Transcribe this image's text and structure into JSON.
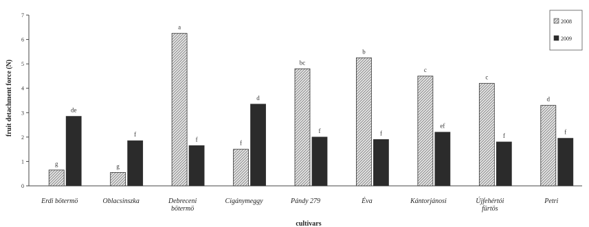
{
  "chart_data": {
    "type": "bar",
    "title": "",
    "xlabel": "cultivars",
    "ylabel": "fruit detachment force (N)",
    "ylim": [
      0,
      7
    ],
    "yticks": [
      0,
      1,
      2,
      3,
      4,
      5,
      6,
      7
    ],
    "grid": false,
    "legend_position": "top-right",
    "categories": [
      [
        "Erdi bötermö"
      ],
      [
        "Oblacsinszka"
      ],
      [
        "Debreceni",
        "bötermö"
      ],
      [
        "Cigánymeggy"
      ],
      [
        "Pándy 279"
      ],
      [
        "Éva"
      ],
      [
        "Kántorjánosi"
      ],
      [
        "Újfehértói",
        "fürtös"
      ],
      [
        "Petri"
      ]
    ],
    "series": [
      {
        "name": "2008",
        "pattern": "hatched",
        "color": "#cfcfcf",
        "values": [
          0.65,
          0.55,
          6.25,
          1.5,
          4.8,
          5.25,
          4.5,
          4.2,
          3.3
        ],
        "letters": [
          "g",
          "g",
          "a",
          "f",
          "bc",
          "b",
          "c",
          "c",
          "d"
        ]
      },
      {
        "name": "2009",
        "pattern": "solid",
        "color": "#2b2b2b",
        "values": [
          2.85,
          1.85,
          1.65,
          3.35,
          2.0,
          1.9,
          2.2,
          1.8,
          1.95
        ],
        "letters": [
          "de",
          "f",
          "f",
          "d",
          "f",
          "f",
          "ef",
          "f",
          "f"
        ]
      }
    ]
  }
}
